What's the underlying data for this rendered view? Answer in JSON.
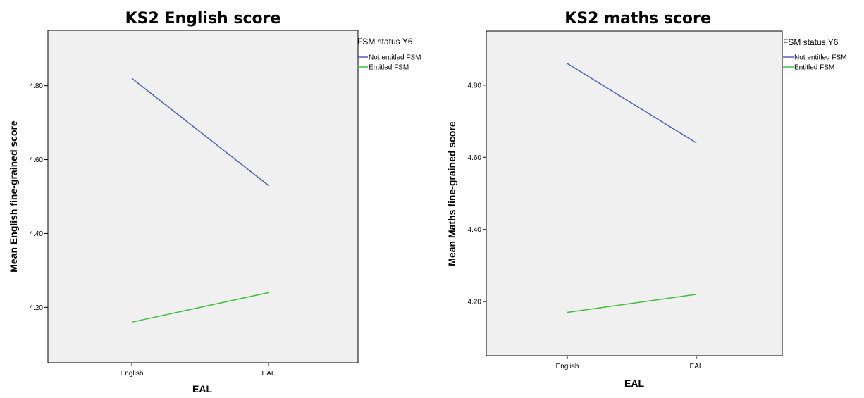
{
  "chart_data": [
    {
      "type": "line",
      "title": "KS2 English score",
      "xlabel": "EAL",
      "ylabel": "Mean English fine-grained score",
      "categories": [
        "English",
        "EAL"
      ],
      "ylim": [
        4.05,
        4.95
      ],
      "yticks": [
        "4.20",
        "4.40",
        "4.60",
        "4.80"
      ],
      "grid": false,
      "legend": {
        "title": "FSM status Y6",
        "placement": "top-right outside"
      },
      "series": [
        {
          "name": "Not entitled FSM",
          "color": "#4a5fc1",
          "values": [
            4.82,
            4.53
          ]
        },
        {
          "name": "Entitled FSM",
          "color": "#3cc03c",
          "values": [
            4.16,
            4.24
          ]
        }
      ]
    },
    {
      "type": "line",
      "title": "KS2 maths score",
      "xlabel": "EAL",
      "ylabel": "Mean Maths fine-grained score",
      "categories": [
        "English",
        "EAL"
      ],
      "ylim": [
        4.05,
        4.95
      ],
      "yticks": [
        "4.20",
        "4.40",
        "4.60",
        "4.80"
      ],
      "grid": false,
      "legend": {
        "title": "FSM status Y6",
        "placement": "top-right outside"
      },
      "series": [
        {
          "name": "Not entitled FSM",
          "color": "#4a5fc1",
          "values": [
            4.86,
            4.64
          ]
        },
        {
          "name": "Entitled FSM",
          "color": "#3cc03c",
          "values": [
            4.17,
            4.22
          ]
        }
      ]
    }
  ]
}
